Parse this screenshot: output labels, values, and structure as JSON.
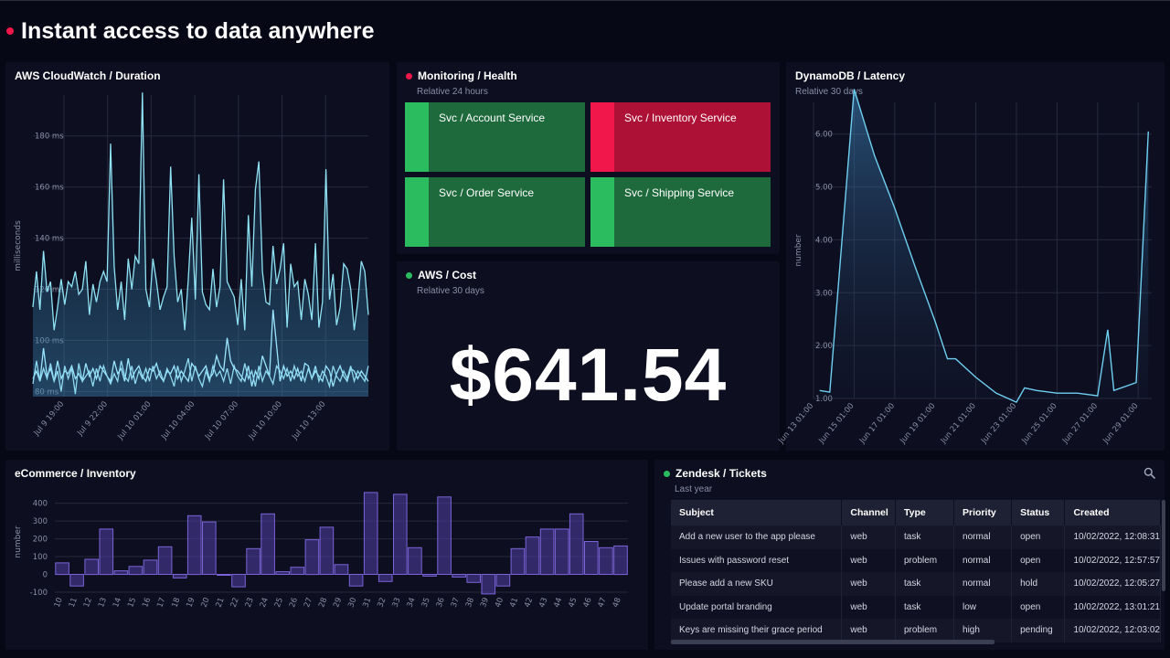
{
  "header": {
    "title": "Instant access to data anywhere",
    "dot_color": "#f2174a"
  },
  "panels": {
    "cloudwatch": {
      "title": "AWS CloudWatch / Duration",
      "chart_data": {
        "type": "line",
        "title": "AWS CloudWatch / Duration",
        "ylabel": "milliseconds",
        "ylim": [
          78,
          196
        ],
        "yticks": [
          80,
          100,
          120,
          140,
          160,
          180
        ],
        "ytick_labels": [
          "80 ms",
          "100 ms",
          "120 ms",
          "140 ms",
          "160 ms",
          "180 ms"
        ],
        "xtick_labels": [
          "Jul 9 19:00",
          "Jul 9 22:00",
          "Jul 10 01:00",
          "Jul 10 04:00",
          "Jul 10 07:00",
          "Jul 10 10:00",
          "Jul 10 13:00"
        ],
        "series": [
          {
            "values": [
              113,
              127,
              112,
              135,
              119,
              123,
              104,
              113,
              124,
              114,
              123,
              121,
              127,
              118,
              120,
              131,
              110,
              122,
              115,
              123,
              127,
              123,
              177,
              129,
              112,
              123,
              108,
              132,
              120,
              133,
              130,
              197,
              120,
              113,
              132,
              123,
              112,
              117,
              121,
              168,
              133,
              115,
              120,
              104,
              124,
              148,
              116,
              165,
              119,
              114,
              112,
              128,
              113,
              121,
              163,
              123,
              120,
              117,
              106,
              124,
              104,
              149,
              121,
              159,
              170,
              127,
              115,
              114,
              137,
              122,
              128,
              138,
              105,
              130,
              121,
              123,
              108,
              124,
              118,
              108,
              138,
              105,
              115,
              167,
              116,
              126,
              106,
              113,
              130,
              128,
              120,
              104,
              115,
              131,
              127,
              110
            ],
            "color": "#8fe3f4"
          },
          {
            "values": [
              85,
              88,
              84,
              97,
              86,
              89,
              84,
              92,
              85,
              88,
              87,
              90,
              85,
              87,
              84,
              91,
              86,
              89,
              85,
              90,
              88,
              86,
              84,
              92,
              87,
              89,
              84,
              93,
              85,
              88,
              90,
              86,
              84,
              89,
              88,
              91,
              86,
              84,
              88,
              87,
              90,
              85,
              88,
              86,
              84,
              91,
              89,
              86,
              88,
              90,
              85,
              87,
              94,
              90,
              88,
              101,
              92,
              89,
              88,
              86,
              84,
              90,
              82,
              88,
              85,
              94,
              90,
              86,
              112,
              98,
              84,
              90,
              86,
              88,
              85,
              89,
              84,
              91,
              90,
              85,
              88,
              86,
              84,
              90,
              88,
              82,
              87,
              90,
              86,
              84,
              89,
              88,
              85,
              88,
              86,
              84
            ],
            "color": "#9be6ff"
          },
          {
            "values": [
              83,
              92,
              84,
              89,
              85,
              91,
              84,
              88,
              80,
              90,
              85,
              89,
              79,
              91,
              84,
              86,
              88,
              82,
              89,
              84,
              90,
              86,
              83,
              87,
              84,
              92,
              86,
              84,
              90,
              83,
              88,
              85,
              89,
              84,
              90,
              85,
              88,
              84,
              89,
              86,
              82,
              90,
              84,
              88,
              93,
              84,
              90,
              85,
              82,
              88,
              84,
              90,
              86,
              88,
              84,
              89,
              83,
              90,
              86,
              84,
              91,
              85,
              88,
              82,
              90,
              84,
              88,
              86,
              83,
              90,
              88,
              85,
              89,
              84,
              90,
              86,
              88,
              84,
              89,
              85,
              90,
              84,
              88,
              86,
              82,
              90,
              86,
              84,
              88,
              85,
              90,
              84,
              88,
              86,
              84,
              90
            ],
            "color": "#8ed9f0"
          }
        ]
      }
    },
    "monitoring": {
      "title": "Monitoring / Health",
      "subtitle": "Relative 24 hours",
      "dot_color": "#f2174a",
      "tiles": [
        {
          "label": "Svc / Account Service",
          "status": "ok"
        },
        {
          "label": "Svc / Inventory Service",
          "status": "error"
        },
        {
          "label": "Svc / Order Service",
          "status": "ok"
        },
        {
          "label": "Svc / Shipping Service",
          "status": "ok"
        }
      ],
      "colors": {
        "ok_bg": "#1e6a3c",
        "ok_strip": "#2cbc60",
        "error_bg": "#ae1136",
        "error_strip": "#f2174a"
      }
    },
    "cost": {
      "title": "AWS / Cost",
      "subtitle": "Relative 30 days",
      "dot_color": "#2cbc60",
      "value": "$641.54"
    },
    "dynamodb": {
      "title": "DynamoDB / Latency",
      "subtitle": "Relative 30 days",
      "chart_data": {
        "type": "area",
        "title": "DynamoDB / Latency",
        "ylabel": "number",
        "ylim": [
          1,
          6.6
        ],
        "yticks": [
          1,
          2,
          3,
          4,
          5,
          6
        ],
        "ytick_labels": [
          "1.00",
          "2.00",
          "3.00",
          "4.00",
          "5.00",
          "6.00"
        ],
        "xtick_labels": [
          "Jun 13 01:00",
          "Jun 15 01:00",
          "Jun 17 01:00",
          "Jun 19 01:00",
          "Jun 21 01:00",
          "Jun 23 01:00",
          "Jun 25 01:00",
          "Jun 27 01:00",
          "Jun 29 01:00"
        ],
        "x_days": [
          13.3,
          13.8,
          15,
          16,
          17,
          18,
          19,
          19.6,
          20,
          21,
          22,
          23,
          23.4,
          24,
          25,
          26,
          27,
          27.5,
          27.8,
          28.9,
          29.5
        ],
        "values": [
          1.15,
          1.12,
          6.85,
          5.6,
          4.6,
          3.5,
          2.45,
          1.75,
          1.75,
          1.4,
          1.1,
          0.93,
          1.2,
          1.15,
          1.1,
          1.1,
          1.05,
          2.3,
          1.15,
          1.3,
          6.05
        ],
        "color": "#6fcff0"
      }
    },
    "inventory": {
      "title": "eCommerce / Inventory",
      "chart_data": {
        "type": "bar",
        "title": "eCommerce / Inventory",
        "ylabel": "number",
        "ylim": [
          -100,
          470
        ],
        "yticks": [
          -100,
          0,
          100,
          200,
          300,
          400
        ],
        "ytick_labels": [
          "-100",
          "0",
          "100",
          "200",
          "300",
          "400"
        ],
        "categories": [
          "10",
          "11",
          "12",
          "13",
          "14",
          "15",
          "16",
          "17",
          "18",
          "19",
          "20",
          "21",
          "22",
          "23",
          "24",
          "25",
          "26",
          "27",
          "28",
          "29",
          "30",
          "31",
          "32",
          "33",
          "34",
          "35",
          "36",
          "37",
          "38",
          "39",
          "40",
          "41",
          "42",
          "43",
          "44",
          "45",
          "46",
          "47",
          "48"
        ],
        "values": [
          65,
          -65,
          85,
          255,
          20,
          45,
          80,
          155,
          -20,
          330,
          295,
          0,
          -70,
          145,
          340,
          15,
          40,
          195,
          265,
          55,
          -65,
          460,
          -40,
          450,
          150,
          -10,
          435,
          -15,
          -45,
          -110,
          -65,
          145,
          210,
          255,
          255,
          340,
          185,
          150,
          160
        ],
        "color": "#7b63d8"
      }
    },
    "zendesk": {
      "title": "Zendesk / Tickets",
      "subtitle": "Last year",
      "dot_color": "#2cbc60",
      "columns": [
        "Subject",
        "Channel",
        "Type",
        "Priority",
        "Status",
        "Created"
      ],
      "rows": [
        [
          "Add a new user to the app please",
          "web",
          "task",
          "normal",
          "open",
          "10/02/2022, 12:08:31"
        ],
        [
          "Issues with password reset",
          "web",
          "problem",
          "normal",
          "open",
          "10/02/2022, 12:57:57"
        ],
        [
          "Please add a new SKU",
          "web",
          "task",
          "normal",
          "hold",
          "10/02/2022, 12:05:27"
        ],
        [
          "Update portal branding",
          "web",
          "task",
          "low",
          "open",
          "10/02/2022, 13:01:21"
        ],
        [
          "Keys are missing their grace period",
          "web",
          "problem",
          "high",
          "pending",
          "10/02/2022, 12:03:02"
        ]
      ]
    }
  }
}
